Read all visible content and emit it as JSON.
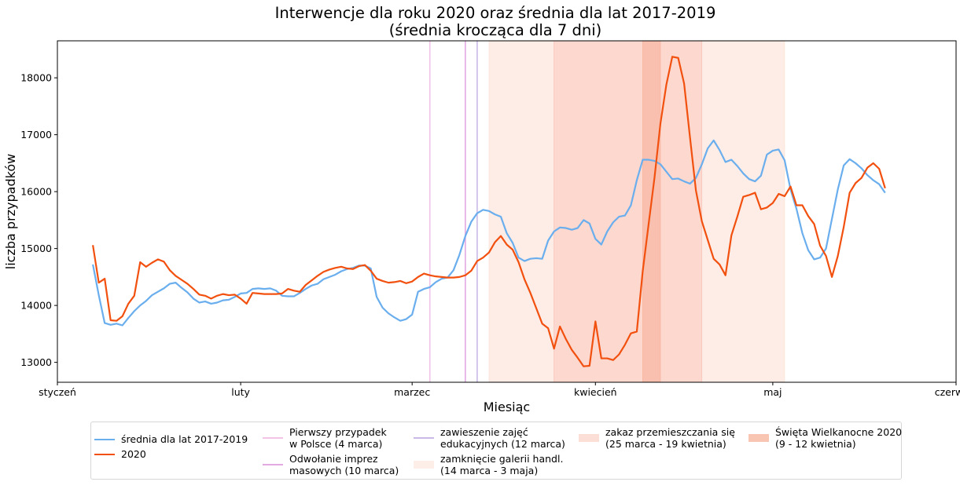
{
  "chart_data": {
    "type": "line",
    "title": "Interwencje dla roku 2020 oraz średnia dla lat 2017-2019\n(średnia krocząca dla 7 dni)",
    "xlabel": "Miesiąc",
    "ylabel": "liczba przypadków",
    "x_range": [
      "2020-01-01",
      "2020-06-01"
    ],
    "ylim": [
      12650,
      18650
    ],
    "xticks": [
      {
        "date": "2020-01-01",
        "label": "styczeń"
      },
      {
        "date": "2020-02-01",
        "label": "luty"
      },
      {
        "date": "2020-03-01",
        "label": "marzec"
      },
      {
        "date": "2020-04-01",
        "label": "kwiecień"
      },
      {
        "date": "2020-05-01",
        "label": "maj"
      },
      {
        "date": "2020-06-01",
        "label": "czerwiec"
      }
    ],
    "yticks": [
      13000,
      14000,
      15000,
      16000,
      17000,
      18000
    ],
    "grid": false,
    "legend_position": "bottom",
    "series": [
      {
        "name": "średnia dla lat 2017-2019",
        "color": "#6aaeee",
        "start_date": "2020-01-07",
        "values": [
          14720,
          14180,
          13690,
          13660,
          13680,
          13650,
          13780,
          13900,
          14000,
          14080,
          14180,
          14240,
          14300,
          14380,
          14400,
          14310,
          14230,
          14120,
          14050,
          14070,
          14030,
          14050,
          14090,
          14100,
          14150,
          14210,
          14220,
          14290,
          14300,
          14290,
          14300,
          14260,
          14170,
          14160,
          14160,
          14220,
          14290,
          14350,
          14380,
          14460,
          14500,
          14540,
          14600,
          14640,
          14660,
          14700,
          14700,
          14650,
          14150,
          13960,
          13860,
          13790,
          13730,
          13760,
          13840,
          14240,
          14290,
          14320,
          14410,
          14470,
          14490,
          14620,
          14890,
          15220,
          15470,
          15620,
          15680,
          15660,
          15600,
          15560,
          15270,
          15100,
          14840,
          14780,
          14820,
          14830,
          14820,
          15140,
          15300,
          15370,
          15360,
          15330,
          15360,
          15500,
          15440,
          15170,
          15070,
          15300,
          15460,
          15560,
          15580,
          15760,
          16200,
          16560,
          16560,
          16540,
          16480,
          16350,
          16220,
          16230,
          16180,
          16140,
          16240,
          16480,
          16760,
          16900,
          16730,
          16520,
          16560,
          16450,
          16320,
          16220,
          16180,
          16280,
          16650,
          16720,
          16740,
          16550,
          16040,
          15700,
          15270,
          14970,
          14810,
          14840,
          15000,
          15520,
          16040,
          16460,
          16570,
          16500,
          16410,
          16290,
          16200,
          16130,
          15980
        ]
      },
      {
        "name": "2020",
        "color": "#f2500f",
        "start_date": "2020-01-07",
        "values": [
          15060,
          14400,
          14470,
          13740,
          13730,
          13810,
          14030,
          14170,
          14760,
          14680,
          14750,
          14810,
          14770,
          14620,
          14520,
          14450,
          14380,
          14290,
          14190,
          14170,
          14120,
          14170,
          14200,
          14180,
          14190,
          14120,
          14030,
          14220,
          14210,
          14200,
          14200,
          14200,
          14210,
          14290,
          14260,
          14240,
          14360,
          14440,
          14520,
          14590,
          14630,
          14660,
          14680,
          14650,
          14640,
          14690,
          14710,
          14610,
          14470,
          14430,
          14400,
          14410,
          14430,
          14390,
          14420,
          14500,
          14560,
          14530,
          14510,
          14500,
          14490,
          14490,
          14500,
          14530,
          14610,
          14780,
          14840,
          14930,
          15110,
          15220,
          15070,
          14980,
          14760,
          14460,
          14220,
          13950,
          13680,
          13600,
          13240,
          13630,
          13410,
          13220,
          13080,
          12930,
          12940,
          13720,
          13070,
          13070,
          13040,
          13140,
          13310,
          13510,
          13540,
          14600,
          15430,
          16250,
          17200,
          17880,
          18370,
          18350,
          17900,
          16950,
          16020,
          15480,
          15150,
          14820,
          14720,
          14530,
          15230,
          15560,
          15910,
          15940,
          15980,
          15690,
          15720,
          15800,
          15960,
          15920,
          16090,
          15760,
          15760,
          15570,
          15430,
          15050,
          14870,
          14500,
          14870,
          15380,
          15980,
          16150,
          16240,
          16420,
          16500,
          16400,
          16060
        ]
      }
    ],
    "events": [
      {
        "type": "vline",
        "date": "2020-03-04",
        "color": "#f2c3e6",
        "label": "Pierwszy przypadek\nw Polsce (4 marca)"
      },
      {
        "type": "vline",
        "date": "2020-03-10",
        "color": "#e2a9e2",
        "label": "Odwołanie imprez\nmasowych (10 marca)"
      },
      {
        "type": "vline",
        "date": "2020-03-12",
        "color": "#c9b9e6",
        "label": "zawieszenie zajęć\nedukacyjnych (12 marca)"
      },
      {
        "type": "span",
        "start": "2020-03-14",
        "end": "2020-05-03",
        "color": "#fbd6c8",
        "opacity": 0.45,
        "label": "zamknięcie galerii handl.\n(14 marca - 3 maja)"
      },
      {
        "type": "span",
        "start": "2020-03-25",
        "end": "2020-04-19",
        "color": "#f9b2a2",
        "opacity": 0.35,
        "label": "zakaz przemieszczania się\n(25 marca - 19 kwietnia)"
      },
      {
        "type": "span",
        "start": "2020-04-09",
        "end": "2020-04-12",
        "color": "#f7a58a",
        "opacity": 0.45,
        "label": "Święta Wielkanocne 2020\n(9 - 12 kwietnia)"
      }
    ]
  }
}
